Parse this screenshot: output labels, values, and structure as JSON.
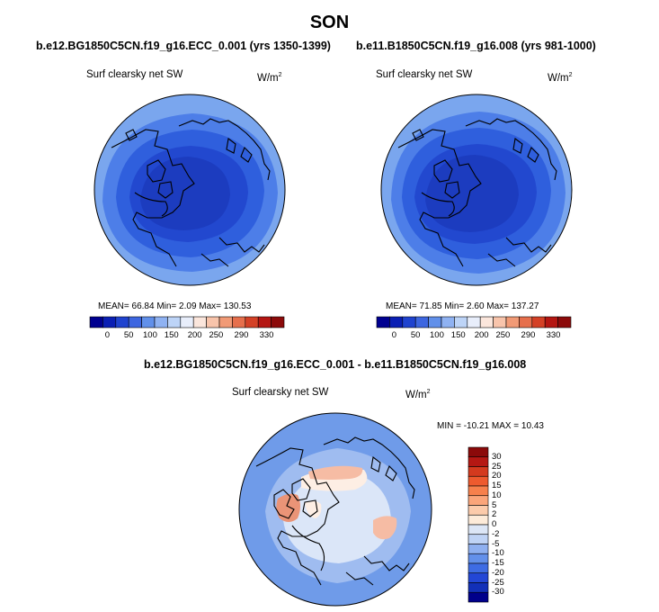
{
  "figure": {
    "title": "SON"
  },
  "panels": [
    {
      "title": "b.e12.BG1850C5CN.f19_g16.ECC_0.001 (yrs 1350-1399)",
      "variable": "Surf clearsky net SW",
      "units_base": "W/m",
      "units_exp": "2",
      "stats": "MEAN=  66.84  Min=   2.09  Max=  130.53"
    },
    {
      "title": "b.e11.B1850C5CN.f19_g16.008 (yrs 981-1000)",
      "variable": "Surf clearsky net SW",
      "units_base": "W/m",
      "units_exp": "2",
      "stats": "MEAN=  71.85  Min=   2.60  Max=  137.27"
    }
  ],
  "diff_panel": {
    "title": "b.e12.BG1850C5CN.f19_g16.ECC_0.001 - b.e11.B1850C5CN.f19_g16.008",
    "variable": "Surf clearsky net SW",
    "units_base": "W/m",
    "units_exp": "2",
    "stats": "MIN = -10.21 MAX =  10.43"
  },
  "chart_data": [
    {
      "type": "heatmap",
      "projection": "polar-stereographic-north",
      "title": "b.e12.BG1850C5CN.f19_g16.ECC_0.001 (yrs 1350-1399)",
      "variable": "Surf clearsky net SW",
      "units": "W/m2",
      "mean": 66.84,
      "min": 2.09,
      "max": 130.53,
      "colorbar": {
        "orientation": "horizontal",
        "tick_labels": [
          "0",
          "50",
          "100",
          "150",
          "200",
          "250",
          "290",
          "330"
        ],
        "colors": [
          "#000090",
          "#0a1fb4",
          "#1f43cf",
          "#3d66e0",
          "#6190ea",
          "#8fb2f2",
          "#bdd4f7",
          "#e8eefb",
          "#fbe6dc",
          "#f8c4ab",
          "#f19a76",
          "#e66f4c",
          "#d44126",
          "#b41612",
          "#8c0a0a"
        ]
      },
      "field_levels": [
        {
          "level": "outer ring",
          "color": "#7aa6ee"
        },
        {
          "level": "ring 2",
          "color": "#4d7ee8"
        },
        {
          "level": "ring 3",
          "color": "#2f5fdd"
        },
        {
          "level": "ring 4",
          "color": "#2248cf"
        },
        {
          "level": "polar cap",
          "color": "#1c3cbf"
        }
      ]
    },
    {
      "type": "heatmap",
      "projection": "polar-stereographic-north",
      "title": "b.e11.B1850C5CN.f19_g16.008 (yrs 981-1000)",
      "variable": "Surf clearsky net SW",
      "units": "W/m2",
      "mean": 71.85,
      "min": 2.6,
      "max": 137.27,
      "colorbar": {
        "orientation": "horizontal",
        "tick_labels": [
          "0",
          "50",
          "100",
          "150",
          "200",
          "250",
          "290",
          "330"
        ],
        "colors": [
          "#000090",
          "#0a1fb4",
          "#1f43cf",
          "#3d66e0",
          "#6190ea",
          "#8fb2f2",
          "#bdd4f7",
          "#e8eefb",
          "#fbe6dc",
          "#f8c4ab",
          "#f19a76",
          "#e66f4c",
          "#d44126",
          "#b41612",
          "#8c0a0a"
        ]
      },
      "field_levels": [
        {
          "level": "outer ring",
          "color": "#7aa6ee"
        },
        {
          "level": "ring 2",
          "color": "#4d7ee8"
        },
        {
          "level": "ring 3",
          "color": "#2f5fdd"
        },
        {
          "level": "ring 4",
          "color": "#2248cf"
        },
        {
          "level": "polar cap",
          "color": "#1c3cbf"
        }
      ]
    },
    {
      "type": "heatmap",
      "projection": "polar-stereographic-north",
      "title": "b.e12.BG1850C5CN.f19_g16.ECC_0.001 - b.e11.B1850C5CN.f19_g16.008",
      "variable": "Surf clearsky net SW",
      "units": "W/m2",
      "min": -10.21,
      "max": 10.43,
      "colorbar": {
        "orientation": "vertical",
        "tick_labels": [
          "30",
          "25",
          "20",
          "15",
          "10",
          "5",
          "2",
          "0",
          "-2",
          "-5",
          "-10",
          "-15",
          "-20",
          "-25",
          "-30"
        ],
        "colors": [
          "#8b0a0a",
          "#b51813",
          "#d43a1e",
          "#ee5a2e",
          "#f7804c",
          "#fba57a",
          "#fccbab",
          "#fdebd9",
          "#dce6f6",
          "#bfd3f5",
          "#8fb0f0",
          "#6390ea",
          "#3e6ce4",
          "#2347d6",
          "#1230b8",
          "#00008b"
        ]
      },
      "field_levels": [
        {
          "level": "background",
          "color": "#6f9be9"
        },
        {
          "level": "slightly negative",
          "color": "#9fbcf0"
        },
        {
          "level": "near zero negative",
          "color": "#dbe6f8"
        },
        {
          "level": "near zero positive",
          "color": "#fdeee4"
        },
        {
          "level": "positive",
          "color": "#f6bca4"
        },
        {
          "level": "strong positive",
          "color": "#ea9477"
        }
      ]
    }
  ]
}
